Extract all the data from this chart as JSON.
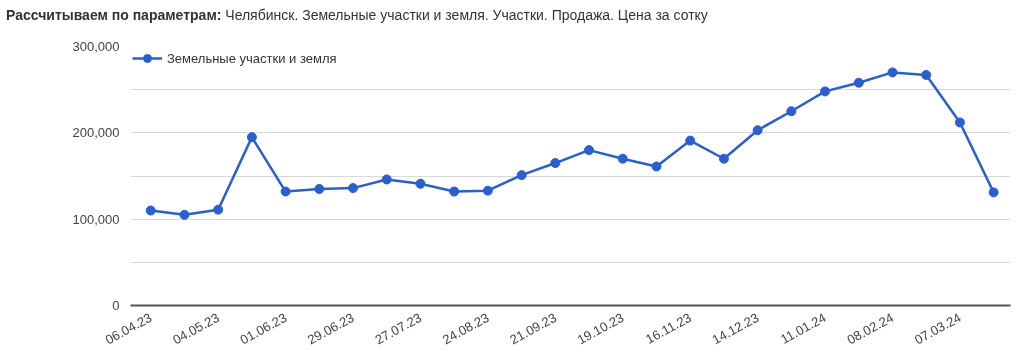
{
  "chart_data": {
    "type": "line",
    "title": "Рассчитываем по параметрам:",
    "subtitle": "Челябинск. Земельные участки и земля. Участки. Продажа. Цена за сотку",
    "categories": [
      "06.04.23",
      null,
      "04.05.23",
      null,
      "01.06.23",
      null,
      "29.06.23",
      null,
      "27.07.23",
      null,
      "24.08.23",
      null,
      "21.09.23",
      null,
      "19.10.23",
      null,
      "16.11.23",
      null,
      "14.12.23",
      null,
      "11.01.24",
      null,
      "08.02.24",
      null,
      "07.03.24",
      null
    ],
    "series": [
      {
        "name": "Земельные участки и земля",
        "color": "#2a5fcf",
        "values": [
          110000,
          105000,
          111000,
          195000,
          132000,
          135000,
          136000,
          146000,
          141000,
          132000,
          133000,
          151000,
          165000,
          180000,
          170000,
          161000,
          191000,
          170000,
          203000,
          225000,
          248000,
          258000,
          270000,
          267000,
          212000,
          131000
        ]
      }
    ],
    "ylim": [
      0,
      300000
    ],
    "yticks": [
      {
        "value": 0,
        "label": "0"
      },
      {
        "value": 50000,
        "label": null
      },
      {
        "value": 100000,
        "label": "100,000"
      },
      {
        "value": 150000,
        "label": null
      },
      {
        "value": 200000,
        "label": "200,000"
      },
      {
        "value": 250000,
        "label": null
      },
      {
        "value": 300000,
        "label": "300,000"
      }
    ],
    "grid": "y",
    "legend": "top left",
    "marker": "circle",
    "line_style": "solid"
  }
}
